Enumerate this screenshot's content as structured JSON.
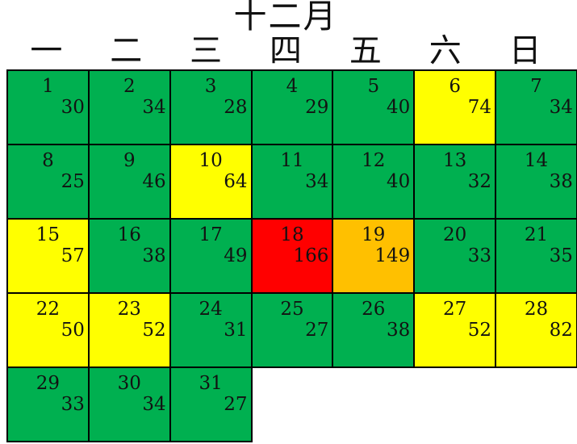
{
  "title": "十二月",
  "chart_data": {
    "type": "heatmap",
    "title": "十二月",
    "weekday_headers": [
      "一",
      "二",
      "三",
      "四",
      "五",
      "六",
      "日"
    ],
    "first_day_column": 0,
    "weeks_count": 5,
    "level_colors": {
      "green": "#00B050",
      "yellow": "#FFFF00",
      "orange": "#FFC000",
      "red": "#FF0000"
    },
    "days": [
      {
        "day": 1,
        "value": 30,
        "level": "green"
      },
      {
        "day": 2,
        "value": 34,
        "level": "green"
      },
      {
        "day": 3,
        "value": 28,
        "level": "green"
      },
      {
        "day": 4,
        "value": 29,
        "level": "green"
      },
      {
        "day": 5,
        "value": 40,
        "level": "green"
      },
      {
        "day": 6,
        "value": 74,
        "level": "yellow"
      },
      {
        "day": 7,
        "value": 34,
        "level": "green"
      },
      {
        "day": 8,
        "value": 25,
        "level": "green"
      },
      {
        "day": 9,
        "value": 46,
        "level": "green"
      },
      {
        "day": 10,
        "value": 64,
        "level": "yellow"
      },
      {
        "day": 11,
        "value": 34,
        "level": "green"
      },
      {
        "day": 12,
        "value": 40,
        "level": "green"
      },
      {
        "day": 13,
        "value": 32,
        "level": "green"
      },
      {
        "day": 14,
        "value": 38,
        "level": "green"
      },
      {
        "day": 15,
        "value": 57,
        "level": "yellow"
      },
      {
        "day": 16,
        "value": 38,
        "level": "green"
      },
      {
        "day": 17,
        "value": 49,
        "level": "green"
      },
      {
        "day": 18,
        "value": 166,
        "level": "red"
      },
      {
        "day": 19,
        "value": 149,
        "level": "orange"
      },
      {
        "day": 20,
        "value": 33,
        "level": "green"
      },
      {
        "day": 21,
        "value": 35,
        "level": "green"
      },
      {
        "day": 22,
        "value": 50,
        "level": "yellow"
      },
      {
        "day": 23,
        "value": 52,
        "level": "yellow"
      },
      {
        "day": 24,
        "value": 31,
        "level": "green"
      },
      {
        "day": 25,
        "value": 27,
        "level": "green"
      },
      {
        "day": 26,
        "value": 38,
        "level": "green"
      },
      {
        "day": 27,
        "value": 52,
        "level": "yellow"
      },
      {
        "day": 28,
        "value": 82,
        "level": "yellow"
      },
      {
        "day": 29,
        "value": 33,
        "level": "green"
      },
      {
        "day": 30,
        "value": 34,
        "level": "green"
      },
      {
        "day": 31,
        "value": 27,
        "level": "green"
      }
    ]
  }
}
